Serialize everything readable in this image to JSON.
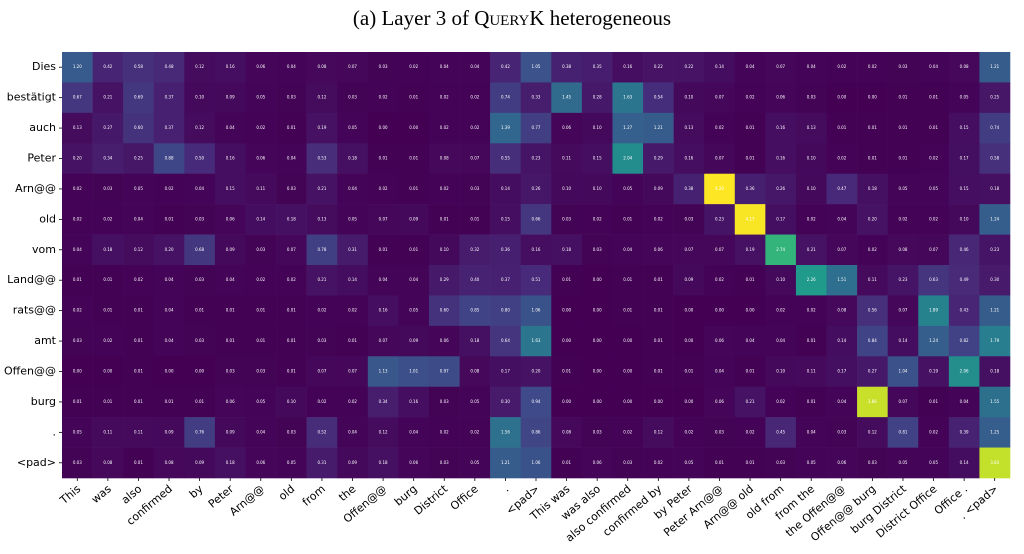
{
  "chart_data": {
    "type": "heatmap",
    "title_prefix": "(a) Layer 3 of ",
    "title_model": "QueryK",
    "title_suffix": " heterogeneous",
    "colormap": "viridis",
    "vmin": 0,
    "vmax": 4.2,
    "rows": [
      "Dies",
      "bestätigt",
      "auch",
      "Peter",
      "Arn@@",
      "old",
      "vom",
      "Land@@",
      "rats@@",
      "amt",
      "Offen@@",
      "burg",
      ".",
      "<pad>"
    ],
    "columns": [
      "This",
      "was",
      "also",
      "confirmed",
      "by",
      "Peter",
      "Arn@@",
      "old",
      "from",
      "the",
      "Offen@@",
      "burg",
      "District",
      "Office",
      ".",
      "<pad>",
      "This was",
      "was also",
      "also confirmed",
      "confirmed by",
      "by Peter",
      "Peter Arn@@",
      "Arn@@ old",
      "old from",
      "from the",
      "the Offen@@",
      "Offen@@ burg",
      "burg District",
      "District Office",
      "Office .",
      ". <pad>"
    ],
    "values": [
      [
        1.2,
        0.42,
        0.58,
        0.48,
        0.12,
        0.16,
        0.06,
        0.04,
        0.08,
        0.07,
        0.03,
        0.02,
        0.04,
        0.04,
        0.42,
        1.05,
        0.38,
        0.35,
        0.16,
        0.22,
        0.22,
        0.14,
        0.04,
        0.07,
        0.04,
        0.02,
        0.02,
        0.03,
        0.04,
        0.08,
        1.21
      ],
      [
        0.67,
        0.21,
        0.69,
        0.37,
        0.1,
        0.09,
        0.05,
        0.03,
        0.12,
        0.03,
        0.02,
        0.01,
        0.02,
        0.02,
        0.74,
        0.33,
        1.45,
        0.28,
        1.63,
        0.54,
        0.1,
        0.07,
        0.02,
        0.06,
        0.03,
        0.0,
        0.0,
        0.01,
        0.01,
        0.05,
        0.25
      ],
      [
        0.13,
        0.27,
        0.6,
        0.37,
        0.12,
        0.04,
        0.02,
        0.01,
        0.19,
        0.05,
        0.0,
        0.0,
        0.02,
        0.02,
        1.39,
        0.77,
        0.06,
        0.1,
        1.27,
        1.21,
        0.13,
        0.02,
        0.01,
        0.16,
        0.13,
        0.01,
        0.01,
        0.01,
        0.01,
        0.15,
        0.74
      ],
      [
        0.2,
        0.34,
        0.25,
        0.88,
        0.5,
        0.16,
        0.06,
        0.04,
        0.53,
        0.18,
        0.01,
        0.01,
        0.08,
        0.07,
        0.55,
        0.23,
        0.11,
        0.15,
        2.04,
        0.29,
        0.16,
        0.07,
        0.01,
        0.16,
        0.1,
        0.02,
        0.01,
        0.01,
        0.02,
        0.17,
        0.58
      ],
      [
        0.02,
        0.03,
        0.05,
        0.02,
        0.04,
        0.15,
        0.11,
        0.03,
        0.21,
        0.04,
        0.02,
        0.01,
        0.02,
        0.03,
        0.14,
        0.26,
        0.1,
        0.1,
        0.05,
        0.09,
        0.38,
        4.2,
        0.36,
        0.26,
        0.1,
        0.47,
        0.18,
        0.05,
        0.05,
        0.15,
        0.18
      ],
      [
        0.02,
        0.02,
        0.04,
        0.01,
        0.03,
        0.06,
        0.14,
        0.18,
        0.13,
        0.05,
        0.07,
        0.09,
        0.01,
        0.01,
        0.15,
        0.66,
        0.03,
        0.02,
        0.01,
        0.02,
        0.03,
        0.23,
        4.17,
        0.17,
        0.02,
        0.04,
        0.2,
        0.02,
        0.02,
        0.1,
        1.24
      ],
      [
        0.04,
        0.18,
        0.12,
        0.2,
        0.68,
        0.09,
        0.03,
        0.07,
        0.78,
        0.31,
        0.01,
        0.01,
        0.1,
        0.32,
        0.36,
        0.16,
        0.18,
        0.03,
        0.04,
        0.06,
        0.07,
        0.07,
        0.19,
        2.74,
        0.21,
        0.07,
        0.02,
        0.08,
        0.07,
        0.46,
        0.23
      ],
      [
        0.01,
        0.01,
        0.02,
        0.04,
        0.03,
        0.04,
        0.02,
        0.02,
        0.21,
        0.14,
        0.04,
        0.04,
        0.29,
        0.4,
        0.37,
        0.51,
        0.01,
        0.0,
        0.01,
        0.01,
        0.09,
        0.02,
        0.01,
        0.1,
        2.26,
        1.51,
        0.11,
        0.23,
        0.63,
        0.49,
        0.3
      ],
      [
        0.02,
        0.01,
        0.01,
        0.04,
        0.01,
        0.01,
        0.01,
        0.01,
        0.02,
        0.02,
        0.16,
        0.05,
        0.6,
        0.85,
        0.8,
        1.06,
        0.0,
        0.0,
        0.01,
        0.01,
        0.0,
        0.0,
        0.0,
        0.02,
        0.02,
        0.08,
        0.56,
        0.07,
        1.89,
        0.43,
        1.21
      ],
      [
        0.03,
        0.02,
        0.01,
        0.04,
        0.03,
        0.01,
        0.01,
        0.01,
        0.03,
        0.01,
        0.07,
        0.09,
        0.06,
        0.18,
        0.64,
        1.63,
        0.0,
        0.0,
        0.0,
        0.01,
        0.0,
        0.06,
        0.04,
        0.04,
        0.01,
        0.14,
        0.84,
        0.14,
        1.24,
        0.82,
        1.79
      ],
      [
        0.0,
        0.0,
        0.01,
        0.0,
        0.0,
        0.03,
        0.03,
        0.01,
        0.07,
        0.07,
        1.13,
        1.01,
        0.97,
        0.08,
        0.17,
        0.2,
        0.01,
        0.0,
        0.0,
        0.01,
        0.01,
        0.04,
        0.01,
        0.1,
        0.11,
        0.17,
        0.27,
        1.04,
        0.19,
        2.06,
        0.18
      ],
      [
        0.01,
        0.01,
        0.01,
        0.01,
        0.01,
        0.06,
        0.05,
        0.1,
        0.02,
        0.02,
        0.34,
        0.16,
        0.03,
        0.05,
        0.3,
        0.94,
        0.0,
        0.0,
        0.0,
        0.0,
        0.0,
        0.06,
        0.21,
        0.02,
        0.01,
        0.04,
        3.86,
        0.07,
        0.01,
        0.04,
        1.55
      ],
      [
        0.05,
        0.11,
        0.11,
        0.09,
        0.76,
        0.09,
        0.04,
        0.03,
        0.52,
        0.04,
        0.12,
        0.04,
        0.02,
        0.02,
        1.56,
        0.86,
        0.08,
        0.03,
        0.02,
        0.12,
        0.02,
        0.03,
        0.02,
        0.45,
        0.04,
        0.03,
        0.12,
        0.81,
        0.02,
        0.39,
        1.25
      ],
      [
        0.03,
        0.08,
        0.01,
        0.08,
        0.09,
        0.18,
        0.06,
        0.05,
        0.31,
        0.09,
        0.18,
        0.06,
        0.03,
        0.05,
        1.21,
        1.06,
        0.01,
        0.06,
        0.03,
        0.02,
        0.05,
        0.01,
        0.01,
        0.03,
        0.05,
        0.06,
        0.03,
        0.05,
        0.05,
        0.14,
        3.83
      ]
    ]
  }
}
